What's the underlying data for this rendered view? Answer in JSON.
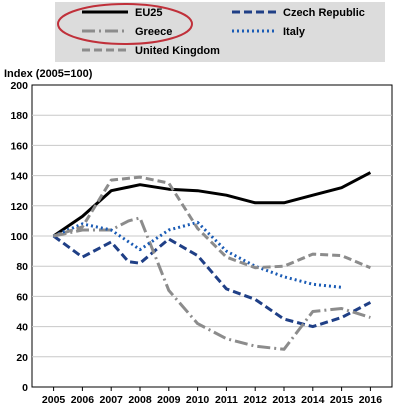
{
  "chart_data": {
    "type": "line",
    "ylabel": "Index (2005=100)",
    "xlabel": "",
    "title": "",
    "ylim": [
      0,
      200
    ],
    "y_ticks": [
      0,
      20,
      40,
      60,
      80,
      100,
      120,
      140,
      160,
      180,
      200
    ],
    "x": [
      "2005",
      "2006",
      "2007",
      "2008",
      "2009",
      "2010",
      "2011",
      "2012",
      "2013",
      "2014",
      "2015",
      "2016"
    ],
    "grid": true,
    "legend_position": "top",
    "annotations": [
      "red ellipse highlighting the EU25 and Greece legend entries"
    ],
    "series": [
      {
        "name": "EU25",
        "color": "#000000",
        "dash": "solid",
        "points": [
          [
            2005,
            100
          ],
          [
            2006,
            113
          ],
          [
            2007,
            130
          ],
          [
            2008,
            134
          ],
          [
            2009,
            131
          ],
          [
            2010,
            130
          ],
          [
            2011,
            127
          ],
          [
            2012,
            122
          ],
          [
            2013,
            122
          ],
          [
            2014,
            127
          ],
          [
            2015,
            132
          ],
          [
            2016,
            142
          ]
        ]
      },
      {
        "name": "Czech Republic",
        "color": "#1f3f86",
        "dash": "dash",
        "points": [
          [
            2005,
            100
          ],
          [
            2006,
            86
          ],
          [
            2007,
            96
          ],
          [
            2007.6,
            83
          ],
          [
            2008,
            82
          ],
          [
            2009,
            98
          ],
          [
            2010,
            87
          ],
          [
            2011,
            65
          ],
          [
            2012,
            58
          ],
          [
            2013,
            45
          ],
          [
            2014,
            40
          ],
          [
            2015,
            46
          ],
          [
            2016,
            56
          ]
        ]
      },
      {
        "name": "Greece",
        "color": "#8c8c8c",
        "dash": "dashdot",
        "points": [
          [
            2005,
            100
          ],
          [
            2006,
            104
          ],
          [
            2007,
            104
          ],
          [
            2007.6,
            110
          ],
          [
            2008,
            112
          ],
          [
            2009,
            64
          ],
          [
            2010,
            42
          ],
          [
            2011,
            32
          ],
          [
            2012,
            27
          ],
          [
            2013,
            25
          ],
          [
            2014,
            50
          ],
          [
            2015,
            52
          ],
          [
            2016,
            46
          ]
        ]
      },
      {
        "name": "Italy",
        "color": "#1a5bb5",
        "dash": "dot",
        "points": [
          [
            2005,
            100
          ],
          [
            2006,
            108
          ],
          [
            2007,
            104
          ],
          [
            2008,
            91
          ],
          [
            2009,
            104
          ],
          [
            2010,
            109
          ],
          [
            2011,
            90
          ],
          [
            2012,
            80
          ],
          [
            2013,
            73
          ],
          [
            2014,
            68
          ],
          [
            2015,
            66
          ]
        ]
      },
      {
        "name": "United Kingdom",
        "color": "#8c8c8c",
        "dash": "dash",
        "points": [
          [
            2005,
            100
          ],
          [
            2006,
            106
          ],
          [
            2007,
            137
          ],
          [
            2008,
            139
          ],
          [
            2009,
            135
          ],
          [
            2010,
            105
          ],
          [
            2011,
            86
          ],
          [
            2012,
            79
          ],
          [
            2013,
            80
          ],
          [
            2014,
            88
          ],
          [
            2015,
            87
          ],
          [
            2016,
            79
          ]
        ]
      }
    ]
  }
}
